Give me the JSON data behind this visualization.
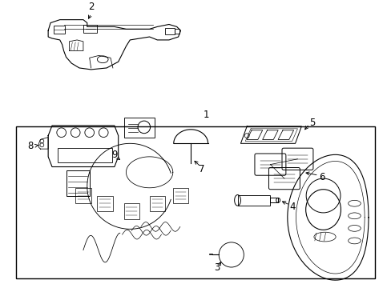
{
  "bg_color": "#ffffff",
  "line_color": "#000000",
  "fig_width": 4.89,
  "fig_height": 3.6,
  "dpi": 100,
  "label_fontsize": 8.5
}
